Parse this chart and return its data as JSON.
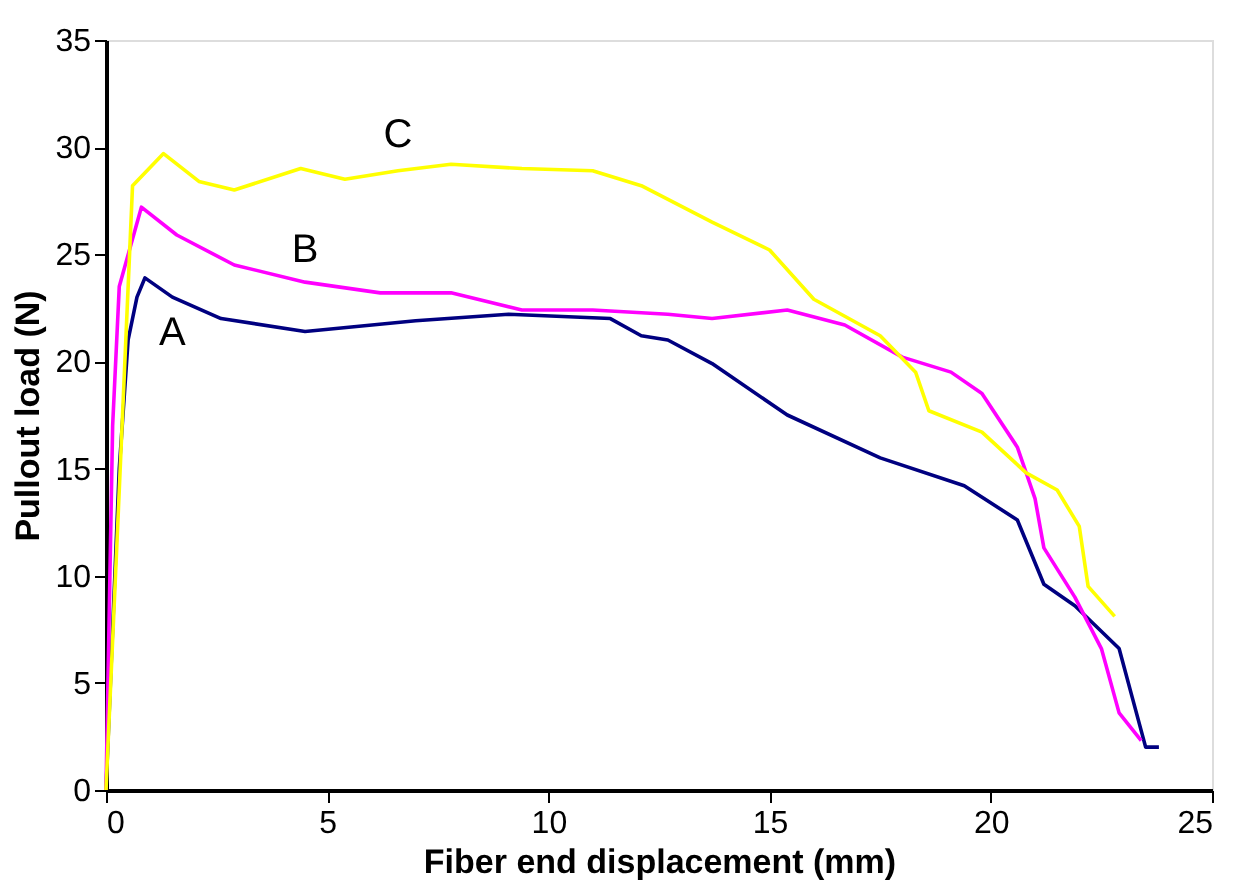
{
  "chart_data": {
    "type": "line",
    "xlabel": "Fiber end displacement (mm)",
    "ylabel": "Pullout load (N)",
    "xlim": [
      0,
      25
    ],
    "xticks": [
      0,
      5,
      10,
      15,
      20,
      25
    ],
    "ylim": [
      0,
      35
    ],
    "yticks": [
      0,
      5,
      10,
      15,
      20,
      25,
      30,
      35
    ],
    "line_style": "solid",
    "series": [
      {
        "name": "A",
        "color": "#000080",
        "x": [
          0,
          0.3,
          0.5,
          0.7,
          0.88,
          1.5,
          2.6,
          4.5,
          7.0,
          9.1,
          11.4,
          12.1,
          12.7,
          13.7,
          15.4,
          17.5,
          19.4,
          20.6,
          21.2,
          21.9,
          22.9,
          23.2,
          23.5,
          23.8
        ],
        "values": [
          0,
          15,
          21,
          23,
          23.9,
          23,
          22.0,
          21.4,
          21.9,
          22.2,
          22.0,
          21.2,
          21.0,
          19.9,
          17.5,
          15.5,
          14.2,
          12.6,
          9.6,
          8.6,
          6.6,
          4.3,
          2.0,
          2.0
        ]
      },
      {
        "name": "B",
        "color": "#ff00ff",
        "x": [
          0,
          0.15,
          0.3,
          0.8,
          1.6,
          2.9,
          4.5,
          6.2,
          7.8,
          9.4,
          11.0,
          12.7,
          13.7,
          15.4,
          16.7,
          18.0,
          19.1,
          19.8,
          20.6,
          21.0,
          21.2,
          21.9,
          22.5,
          22.9,
          23.4
        ],
        "values": [
          0,
          17,
          23.5,
          27.2,
          25.9,
          24.5,
          23.7,
          23.2,
          23.2,
          22.4,
          22.4,
          22.2,
          22.0,
          22.4,
          21.7,
          20.2,
          19.5,
          18.5,
          16.0,
          13.6,
          11.3,
          9.0,
          6.6,
          3.6,
          2.3
        ]
      },
      {
        "name": "C",
        "color": "#ffff00",
        "x": [
          0,
          0.3,
          0.6,
          1.3,
          2.1,
          2.9,
          4.4,
          5.4,
          6.6,
          7.8,
          9.4,
          11.0,
          12.1,
          13.7,
          15.0,
          16.0,
          17.5,
          18.3,
          18.6,
          19.8,
          20.8,
          21.5,
          22.0,
          22.2,
          22.8
        ],
        "values": [
          0,
          14,
          28.2,
          29.7,
          28.4,
          28.0,
          29.0,
          28.5,
          28.9,
          29.2,
          29.0,
          28.9,
          28.2,
          26.5,
          25.2,
          22.9,
          21.2,
          19.5,
          17.7,
          16.7,
          14.8,
          14.0,
          12.3,
          9.5,
          8.1
        ]
      }
    ]
  }
}
